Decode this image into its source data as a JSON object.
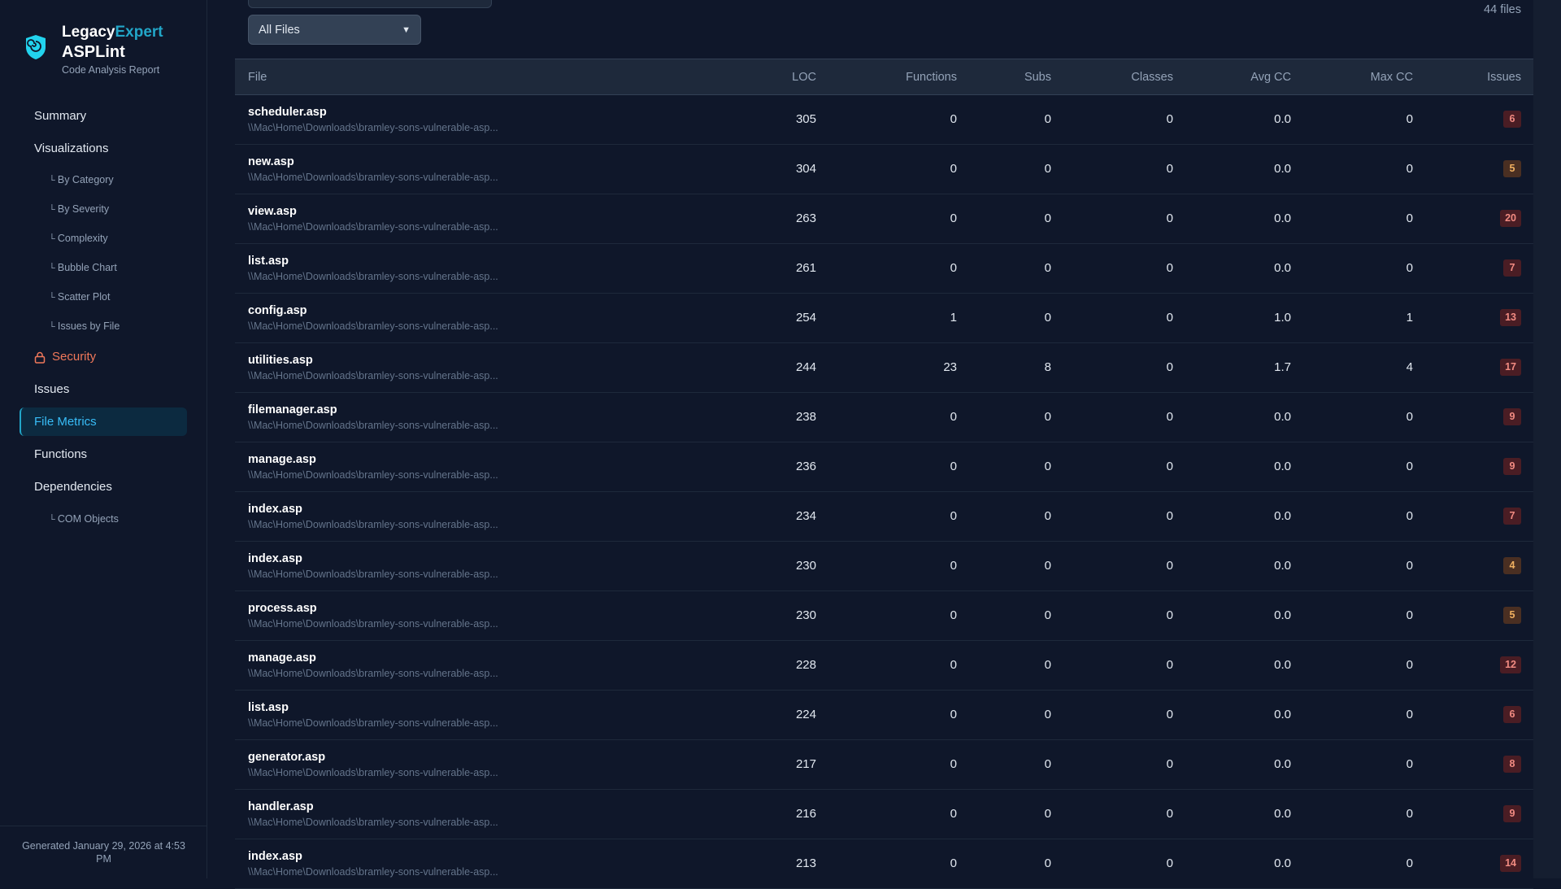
{
  "brand": {
    "name_a": "Legacy",
    "name_b": "Expert",
    "product": "ASPLint",
    "subtitle": "Code Analysis Report"
  },
  "nav": {
    "summary": "Summary",
    "visualizations": "Visualizations",
    "sub": [
      "By Category",
      "By Severity",
      "Complexity",
      "Bubble Chart",
      "Scatter Plot",
      "Issues by File"
    ],
    "security": "Security",
    "issues": "Issues",
    "file_metrics": "File Metrics",
    "functions": "Functions",
    "dependencies": "Dependencies",
    "com_objects": "COM Objects"
  },
  "footer": "Generated January 29, 2026 at 4:53 PM",
  "filter": {
    "selected": "All Files"
  },
  "file_count": "44 files",
  "columns": [
    "File",
    "LOC",
    "Functions",
    "Subs",
    "Classes",
    "Avg CC",
    "Max CC",
    "Issues"
  ],
  "colors": {
    "accent": "#22a6c8",
    "security": "#f0785a",
    "badge_high": "#4a1d24",
    "badge_med": "#4a2f22"
  },
  "rows": [
    {
      "file": "scheduler.asp",
      "path": "\\\\Mac\\Home\\Downloads\\bramley-sons-vulnerable-asp...",
      "loc": "305",
      "functions": "0",
      "subs": "0",
      "classes": "0",
      "avg_cc": "0.0",
      "max_cc": "0",
      "issues": "6",
      "level": "high"
    },
    {
      "file": "new.asp",
      "path": "\\\\Mac\\Home\\Downloads\\bramley-sons-vulnerable-asp...",
      "loc": "304",
      "functions": "0",
      "subs": "0",
      "classes": "0",
      "avg_cc": "0.0",
      "max_cc": "0",
      "issues": "5",
      "level": "med"
    },
    {
      "file": "view.asp",
      "path": "\\\\Mac\\Home\\Downloads\\bramley-sons-vulnerable-asp...",
      "loc": "263",
      "functions": "0",
      "subs": "0",
      "classes": "0",
      "avg_cc": "0.0",
      "max_cc": "0",
      "issues": "20",
      "level": "high"
    },
    {
      "file": "list.asp",
      "path": "\\\\Mac\\Home\\Downloads\\bramley-sons-vulnerable-asp...",
      "loc": "261",
      "functions": "0",
      "subs": "0",
      "classes": "0",
      "avg_cc": "0.0",
      "max_cc": "0",
      "issues": "7",
      "level": "high"
    },
    {
      "file": "config.asp",
      "path": "\\\\Mac\\Home\\Downloads\\bramley-sons-vulnerable-asp...",
      "loc": "254",
      "functions": "1",
      "subs": "0",
      "classes": "0",
      "avg_cc": "1.0",
      "max_cc": "1",
      "issues": "13",
      "level": "high"
    },
    {
      "file": "utilities.asp",
      "path": "\\\\Mac\\Home\\Downloads\\bramley-sons-vulnerable-asp...",
      "loc": "244",
      "functions": "23",
      "subs": "8",
      "classes": "0",
      "avg_cc": "1.7",
      "max_cc": "4",
      "issues": "17",
      "level": "high"
    },
    {
      "file": "filemanager.asp",
      "path": "\\\\Mac\\Home\\Downloads\\bramley-sons-vulnerable-asp...",
      "loc": "238",
      "functions": "0",
      "subs": "0",
      "classes": "0",
      "avg_cc": "0.0",
      "max_cc": "0",
      "issues": "9",
      "level": "high"
    },
    {
      "file": "manage.asp",
      "path": "\\\\Mac\\Home\\Downloads\\bramley-sons-vulnerable-asp...",
      "loc": "236",
      "functions": "0",
      "subs": "0",
      "classes": "0",
      "avg_cc": "0.0",
      "max_cc": "0",
      "issues": "9",
      "level": "high"
    },
    {
      "file": "index.asp",
      "path": "\\\\Mac\\Home\\Downloads\\bramley-sons-vulnerable-asp...",
      "loc": "234",
      "functions": "0",
      "subs": "0",
      "classes": "0",
      "avg_cc": "0.0",
      "max_cc": "0",
      "issues": "7",
      "level": "high"
    },
    {
      "file": "index.asp",
      "path": "\\\\Mac\\Home\\Downloads\\bramley-sons-vulnerable-asp...",
      "loc": "230",
      "functions": "0",
      "subs": "0",
      "classes": "0",
      "avg_cc": "0.0",
      "max_cc": "0",
      "issues": "4",
      "level": "med"
    },
    {
      "file": "process.asp",
      "path": "\\\\Mac\\Home\\Downloads\\bramley-sons-vulnerable-asp...",
      "loc": "230",
      "functions": "0",
      "subs": "0",
      "classes": "0",
      "avg_cc": "0.0",
      "max_cc": "0",
      "issues": "5",
      "level": "med"
    },
    {
      "file": "manage.asp",
      "path": "\\\\Mac\\Home\\Downloads\\bramley-sons-vulnerable-asp...",
      "loc": "228",
      "functions": "0",
      "subs": "0",
      "classes": "0",
      "avg_cc": "0.0",
      "max_cc": "0",
      "issues": "12",
      "level": "high"
    },
    {
      "file": "list.asp",
      "path": "\\\\Mac\\Home\\Downloads\\bramley-sons-vulnerable-asp...",
      "loc": "224",
      "functions": "0",
      "subs": "0",
      "classes": "0",
      "avg_cc": "0.0",
      "max_cc": "0",
      "issues": "6",
      "level": "high"
    },
    {
      "file": "generator.asp",
      "path": "\\\\Mac\\Home\\Downloads\\bramley-sons-vulnerable-asp...",
      "loc": "217",
      "functions": "0",
      "subs": "0",
      "classes": "0",
      "avg_cc": "0.0",
      "max_cc": "0",
      "issues": "8",
      "level": "high"
    },
    {
      "file": "handler.asp",
      "path": "\\\\Mac\\Home\\Downloads\\bramley-sons-vulnerable-asp...",
      "loc": "216",
      "functions": "0",
      "subs": "0",
      "classes": "0",
      "avg_cc": "0.0",
      "max_cc": "0",
      "issues": "9",
      "level": "high"
    },
    {
      "file": "index.asp",
      "path": "\\\\Mac\\Home\\Downloads\\bramley-sons-vulnerable-asp...",
      "loc": "213",
      "functions": "0",
      "subs": "0",
      "classes": "0",
      "avg_cc": "0.0",
      "max_cc": "0",
      "issues": "14",
      "level": "high"
    }
  ]
}
